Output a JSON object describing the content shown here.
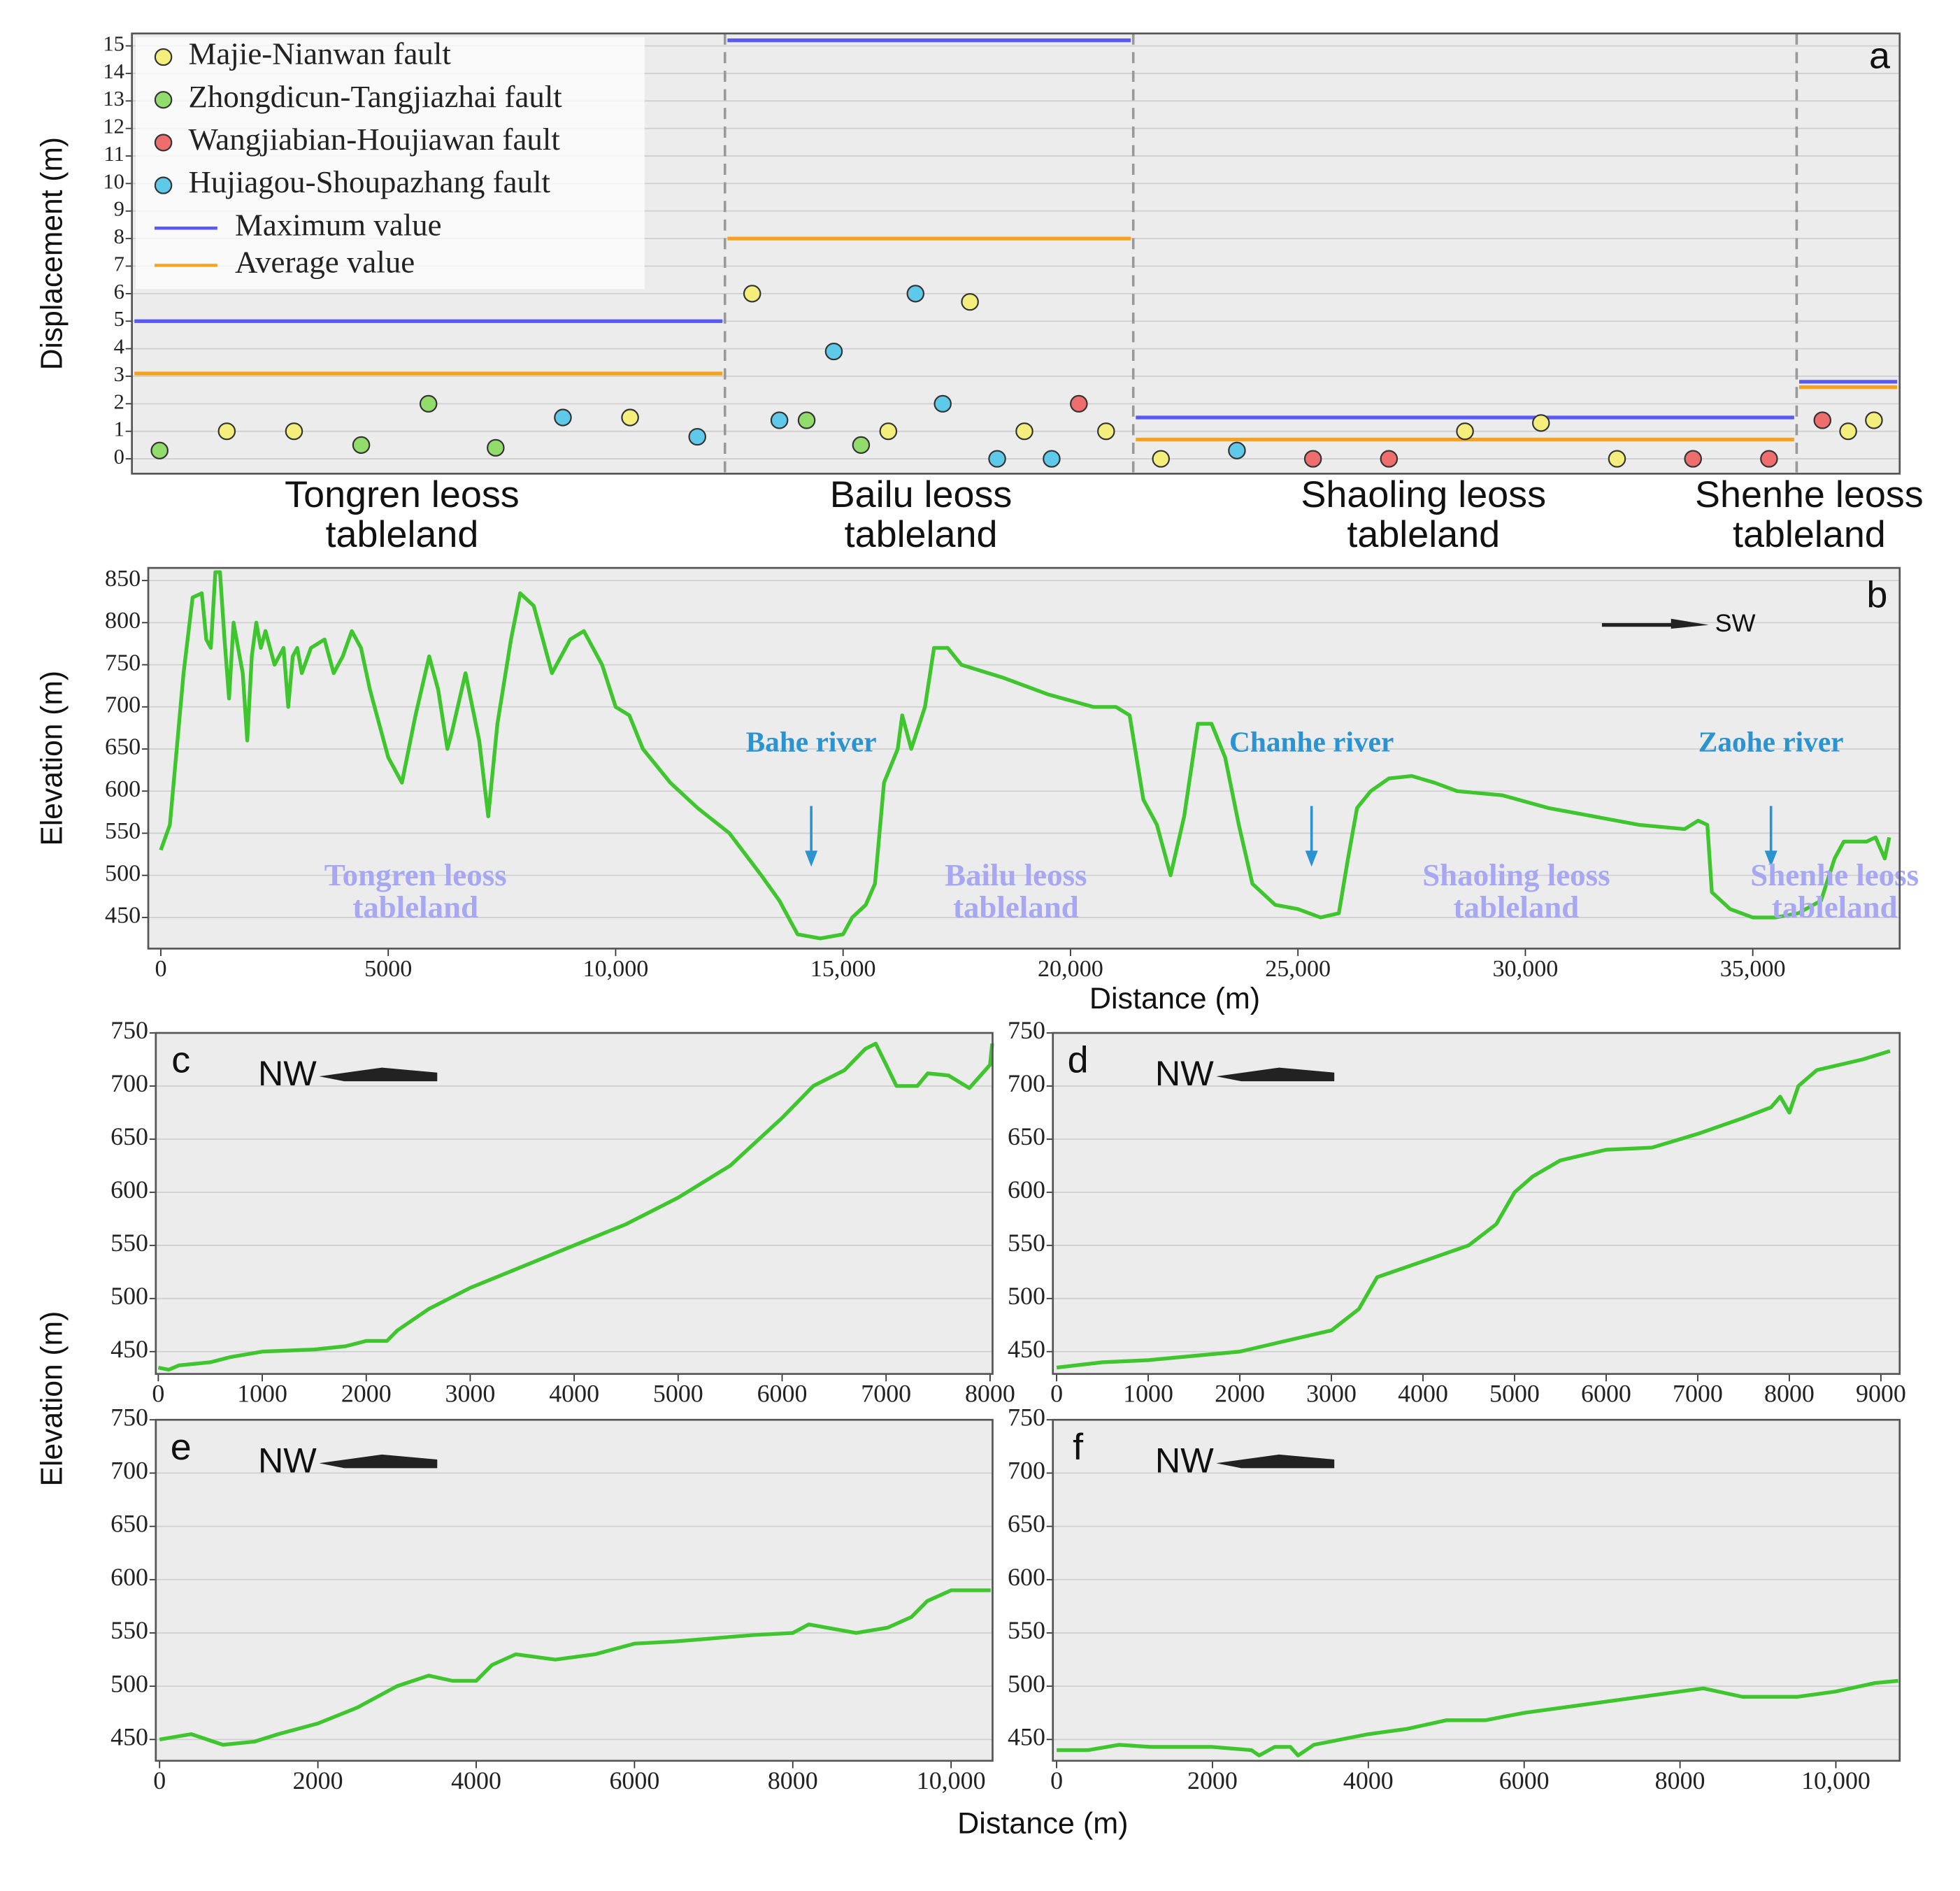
{
  "chart_data": [
    {
      "type": "fault-displacement",
      "panel": "a",
      "ylabel": "Displacement (m)",
      "ylim": [
        -0.54,
        15.45
      ],
      "yticks": [
        0,
        1,
        2,
        3,
        4,
        5,
        6,
        7,
        8,
        9,
        10,
        11,
        12,
        13,
        14,
        15
      ],
      "grid": true,
      "legend": "upper left",
      "series": [
        {
          "name": "Majie-Nianwan fault",
          "color": "#f4ef7c"
        },
        {
          "name": "Zhongdicun-Tangjiazhai fault",
          "color": "#92dc6c"
        },
        {
          "name": "Wangjiabian-Houjiawan fault",
          "color": "#ee6e6e"
        },
        {
          "name": "Hujiagou-Shoupazhang fault",
          "color": "#5ec9e9"
        }
      ],
      "max_line": {
        "name": "Maximum value",
        "color": "#5a5af0"
      },
      "average_line": {
        "name": "Average value",
        "color": "#f5a21e"
      },
      "groups": [
        {
          "label": "Tongren leoss tableland",
          "max": 5,
          "average": 3.1,
          "points": [
            {
              "fault": 1,
              "value": 0.3
            },
            {
              "fault": 0,
              "value": 1.0
            },
            {
              "fault": 0,
              "value": 1.0
            },
            {
              "fault": 1,
              "value": 0.5
            },
            {
              "fault": 1,
              "value": 2.0
            },
            {
              "fault": 1,
              "value": 0.4
            },
            {
              "fault": 3,
              "value": 1.5
            },
            {
              "fault": 0,
              "value": 1.5
            },
            {
              "fault": 3,
              "value": 0.8
            }
          ]
        },
        {
          "label": "Bailu leoss tableland",
          "max": 15.2,
          "average": 8.0,
          "points": [
            {
              "fault": 0,
              "value": 6.0
            },
            {
              "fault": 3,
              "value": 1.4
            },
            {
              "fault": 1,
              "value": 1.4
            },
            {
              "fault": 3,
              "value": 3.9
            },
            {
              "fault": 1,
              "value": 0.5
            },
            {
              "fault": 0,
              "value": 1.0
            },
            {
              "fault": 3,
              "value": 6.0
            },
            {
              "fault": 3,
              "value": 2.0
            },
            {
              "fault": 0,
              "value": 5.7
            },
            {
              "fault": 3,
              "value": 0
            },
            {
              "fault": 0,
              "value": 1.0
            },
            {
              "fault": 3,
              "value": 0
            },
            {
              "fault": 2,
              "value": 2.0
            },
            {
              "fault": 0,
              "value": 1.0
            }
          ]
        },
        {
          "label": "Shaoling leoss tableland",
          "max": 1.5,
          "average": 0.7,
          "points": [
            {
              "fault": 0,
              "value": 0
            },
            {
              "fault": 3,
              "value": 0.3
            },
            {
              "fault": 2,
              "value": 0
            },
            {
              "fault": 2,
              "value": 0
            },
            {
              "fault": 0,
              "value": 1.0
            },
            {
              "fault": 0,
              "value": 1.3
            },
            {
              "fault": 0,
              "value": 0
            },
            {
              "fault": 2,
              "value": 0
            },
            {
              "fault": 2,
              "value": 0
            }
          ]
        },
        {
          "label": "Shenhe leoss tableland",
          "max": 2.8,
          "average": 2.6,
          "points": [
            {
              "fault": 2,
              "value": 1.4
            },
            {
              "fault": 0,
              "value": 1.0
            },
            {
              "fault": 0,
              "value": 1.4
            }
          ]
        }
      ]
    },
    {
      "type": "line",
      "panel": "b",
      "ylabel": "Elevation (m)",
      "xlabel": "Distance (m)",
      "color": "#3fc62f",
      "grid": true,
      "direction": "SW",
      "xlim": [
        -276,
        38230
      ],
      "ylim": [
        413,
        865
      ],
      "xticks": [
        0,
        5000,
        {
          "value": 10000,
          "label": "10,000"
        },
        {
          "value": 15000,
          "label": "15,000"
        },
        {
          "value": 20000,
          "label": "20,000"
        },
        {
          "value": 25000,
          "label": "25,000"
        },
        {
          "value": 30000,
          "label": "30,000"
        },
        {
          "value": 35000,
          "label": "35,000"
        }
      ],
      "yticks": [
        450,
        500,
        550,
        600,
        650,
        700,
        750,
        800,
        850
      ],
      "rivers": [
        {
          "text": "Bahe river",
          "x": 14300
        },
        {
          "text": "Chanhe river",
          "x": 25300
        },
        {
          "text": "Zaohe river",
          "x": 35400
        }
      ],
      "tablelands": [
        {
          "text": "Tongren leoss tableland",
          "x": 5600
        },
        {
          "text": "Bailu leoss tableland",
          "x": 18800
        },
        {
          "text": "Shaoling leoss tableland",
          "x": 29800
        },
        {
          "text": "Shenhe leoss tableland",
          "x": 36800
        }
      ],
      "x": [
        0,
        200,
        500,
        700,
        900,
        1000,
        1100,
        1200,
        1300,
        1400,
        1500,
        1600,
        1700,
        1800,
        1900,
        2000,
        2100,
        2200,
        2300,
        2500,
        2700,
        2800,
        2900,
        3000,
        3100,
        3300,
        3600,
        3800,
        4000,
        4200,
        4400,
        4600,
        5000,
        5300,
        5600,
        5900,
        6100,
        6300,
        6400,
        6700,
        7000,
        7200,
        7400,
        7700,
        7900,
        8200,
        8600,
        9000,
        9300,
        9700,
        10000,
        10300,
        10600,
        11200,
        11800,
        12500,
        13200,
        13600,
        14000,
        14500,
        15000,
        15200,
        15500,
        15700,
        15900,
        16200,
        16300,
        16500,
        16800,
        17000,
        17300,
        17600,
        18500,
        19500,
        20500,
        21000,
        21300,
        21600,
        21900,
        22200,
        22500,
        22800,
        23100,
        23400,
        23700,
        24000,
        24500,
        25000,
        25500,
        25900,
        26100,
        26300,
        26600,
        27000,
        27500,
        28000,
        28500,
        29500,
        30500,
        31500,
        32500,
        33500,
        33800,
        34000,
        34100,
        34500,
        35000,
        35500,
        36000,
        36500,
        36800,
        37000,
        37500,
        37700,
        37900,
        38000
      ],
      "values": [
        530,
        560,
        740,
        830,
        835,
        780,
        770,
        860,
        860,
        780,
        710,
        800,
        770,
        740,
        660,
        760,
        800,
        770,
        790,
        750,
        770,
        700,
        760,
        770,
        740,
        770,
        780,
        740,
        760,
        790,
        770,
        720,
        640,
        610,
        690,
        760,
        720,
        650,
        670,
        740,
        660,
        570,
        680,
        780,
        835,
        820,
        740,
        780,
        790,
        750,
        700,
        690,
        650,
        610,
        580,
        550,
        500,
        470,
        430,
        425,
        430,
        450,
        465,
        490,
        610,
        650,
        690,
        650,
        700,
        770,
        770,
        750,
        735,
        715,
        700,
        700,
        690,
        590,
        560,
        500,
        570,
        680,
        680,
        640,
        560,
        490,
        465,
        460,
        450,
        455,
        520,
        580,
        600,
        615,
        618,
        610,
        600,
        595,
        580,
        570,
        560,
        555,
        565,
        560,
        480,
        460,
        450,
        450,
        455,
        470,
        520,
        540,
        540,
        545,
        520,
        545
      ]
    },
    {
      "type": "line",
      "panel": "c",
      "color": "#3fc62f",
      "grid": true,
      "direction": "NW",
      "xlim": [
        -24,
        8024
      ],
      "ylim": [
        429,
        750
      ],
      "xticks": [
        0,
        1000,
        2000,
        3000,
        4000,
        5000,
        6000,
        7000,
        8000
      ],
      "yticks": [
        450,
        500,
        550,
        600,
        650,
        700,
        750
      ],
      "x": [
        0,
        100,
        200,
        500,
        700,
        1000,
        1500,
        1800,
        2000,
        2200,
        2300,
        2600,
        3000,
        3500,
        4000,
        4500,
        5000,
        5500,
        6000,
        6300,
        6600,
        6800,
        6900,
        7000,
        7100,
        7300,
        7400,
        7600,
        7800,
        8000,
        8020
      ],
      "values": [
        435,
        433,
        437,
        440,
        445,
        450,
        452,
        455,
        460,
        460,
        470,
        490,
        510,
        530,
        550,
        570,
        595,
        625,
        670,
        700,
        715,
        735,
        740,
        720,
        700,
        700,
        712,
        710,
        698,
        720,
        740
      ]
    },
    {
      "type": "line",
      "panel": "d",
      "color": "#3fc62f",
      "grid": true,
      "direction": "NW",
      "xlim": [
        -41,
        9205
      ],
      "ylim": [
        429,
        750
      ],
      "xticks": [
        0,
        1000,
        2000,
        3000,
        4000,
        5000,
        6000,
        7000,
        8000,
        9000
      ],
      "yticks": [
        450,
        500,
        550,
        600,
        650,
        700,
        750
      ],
      "x": [
        0,
        500,
        1000,
        2000,
        2500,
        3000,
        3300,
        3500,
        4000,
        4500,
        4800,
        5000,
        5200,
        5500,
        6000,
        6500,
        7000,
        7500,
        7800,
        7900,
        8000,
        8100,
        8300,
        8800,
        9100
      ],
      "values": [
        435,
        440,
        442,
        450,
        460,
        470,
        490,
        520,
        535,
        550,
        570,
        600,
        615,
        630,
        640,
        642,
        655,
        670,
        680,
        690,
        675,
        700,
        715,
        725,
        733
      ]
    },
    {
      "type": "line",
      "panel": "e",
      "color": "#3fc62f",
      "grid": true,
      "direction": "NW",
      "xlim": [
        -48,
        10524
      ],
      "ylim": [
        430,
        750
      ],
      "xticks": [
        0,
        2000,
        4000,
        6000,
        8000,
        {
          "value": 10000,
          "label": "10,000"
        }
      ],
      "yticks": [
        450,
        500,
        550,
        600,
        650,
        700,
        750
      ],
      "x": [
        0,
        400,
        800,
        1200,
        1500,
        2000,
        2500,
        3000,
        3400,
        3700,
        4000,
        4200,
        4500,
        5000,
        5500,
        6000,
        6500,
        7000,
        7500,
        8000,
        8200,
        8800,
        9200,
        9500,
        9700,
        10000,
        10500
      ],
      "values": [
        450,
        455,
        445,
        448,
        455,
        465,
        480,
        500,
        510,
        505,
        505,
        520,
        530,
        525,
        530,
        540,
        542,
        545,
        548,
        550,
        558,
        550,
        555,
        565,
        580,
        590,
        590
      ]
    },
    {
      "type": "line",
      "panel": "f",
      "color": "#3fc62f",
      "grid": true,
      "direction": "NW",
      "xlim": [
        -48,
        10819
      ],
      "ylim": [
        430,
        750
      ],
      "xticks": [
        0,
        2000,
        4000,
        6000,
        8000,
        {
          "value": 10000,
          "label": "10,000"
        }
      ],
      "yticks": [
        450,
        500,
        550,
        600,
        650,
        700,
        750
      ],
      "x": [
        0,
        400,
        800,
        1200,
        2000,
        2500,
        2600,
        2800,
        3000,
        3100,
        3300,
        4000,
        4500,
        5000,
        5500,
        6000,
        6500,
        7000,
        7500,
        8000,
        8300,
        8800,
        9500,
        10000,
        10500,
        10800
      ],
      "values": [
        440,
        440,
        445,
        443,
        443,
        440,
        435,
        443,
        443,
        435,
        445,
        455,
        460,
        468,
        468,
        475,
        480,
        485,
        490,
        495,
        498,
        490,
        490,
        495,
        503,
        505
      ]
    }
  ],
  "ylabel": "Elevation (m)",
  "xlabel": "Distance (m)"
}
